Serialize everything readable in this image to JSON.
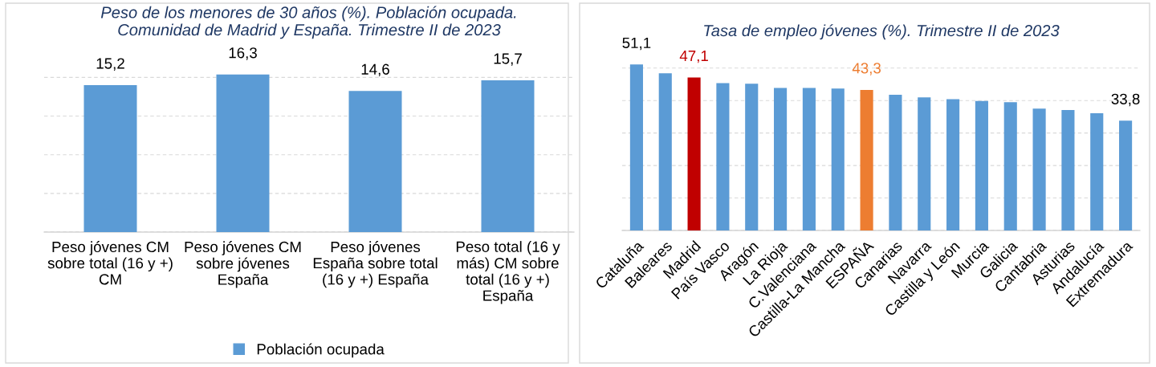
{
  "chart_data": [
    {
      "type": "bar",
      "title": "Peso de los menores de 30 años (%). Población ocupada.\nComunidad de Madrid y España. Trimestre II de 2023",
      "categories": [
        "Peso jóvenes CM\nsobre total (16 y +)\nCM",
        "Peso jóvenes CM\nsobre jóvenes\nEspaña",
        "Peso jóvenes\nEspaña sobre total\n(16 y +) España",
        "Peso total (16 y\nmás) CM sobre\ntotal (16 y +)\nEspaña"
      ],
      "series": [
        {
          "name": "Población ocupada",
          "color": "#5b9bd5",
          "values": [
            15.2,
            16.3,
            14.6,
            15.7
          ],
          "value_labels": [
            "15,2",
            "16,3",
            "14,6",
            "15,7"
          ]
        }
      ],
      "tick_labels": "x",
      "grid": "y",
      "legend": "bottom"
    },
    {
      "type": "bar",
      "title": "Tasa de empleo jóvenes (%). Trimestre II de 2023",
      "categories": [
        "Cataluña",
        "Baleares",
        "Madrid",
        "País Vasco",
        "Aragón",
        "La Rioja",
        "C.Valenciana",
        "Castilla-La Mancha",
        "ESPAÑA",
        "Canarias",
        "Navarra",
        "Castilla y León",
        "Murcia",
        "Galicia",
        "Cantabria",
        "Asturias",
        "Andalucía",
        "Extremadura"
      ],
      "series": [
        {
          "color": "#5b9bd5",
          "colors": [
            "#5b9bd5",
            "#5b9bd5",
            "#c00000",
            "#5b9bd5",
            "#5b9bd5",
            "#5b9bd5",
            "#5b9bd5",
            "#5b9bd5",
            "#ed7d31",
            "#5b9bd5",
            "#5b9bd5",
            "#5b9bd5",
            "#5b9bd5",
            "#5b9bd5",
            "#5b9bd5",
            "#5b9bd5",
            "#5b9bd5",
            "#5b9bd5"
          ],
          "values": [
            51.1,
            48.4,
            47.1,
            45.4,
            45.2,
            43.9,
            43.9,
            43.7,
            43.3,
            41.8,
            41.0,
            40.4,
            39.9,
            39.5,
            37.5,
            37.1,
            36.1,
            33.8
          ],
          "value_labels": [
            "51,1",
            null,
            "47,1",
            null,
            null,
            null,
            null,
            null,
            "43,3",
            null,
            null,
            null,
            null,
            null,
            null,
            null,
            null,
            "33,8"
          ]
        }
      ],
      "tick_labels": "x",
      "grid": "y",
      "legend": false
    }
  ]
}
